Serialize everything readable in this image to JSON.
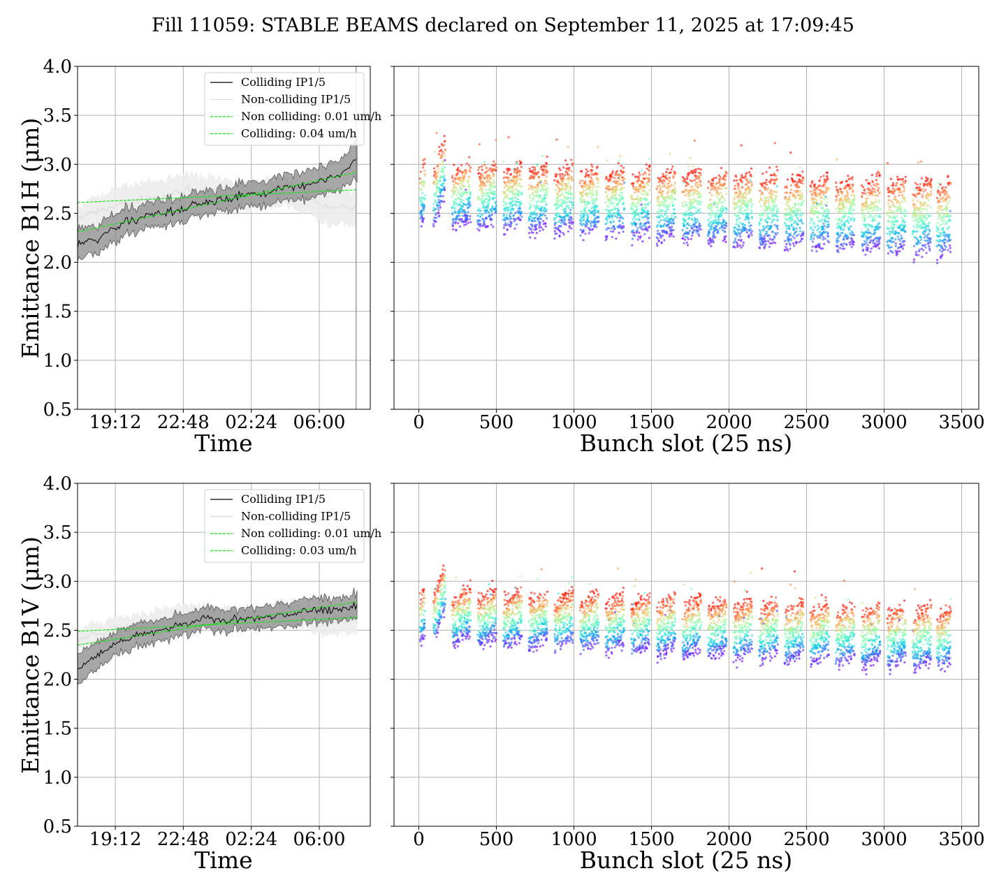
{
  "title": "Fill 11059: STABLE BEAMS declared on September 11, 2025 at 17:09:45",
  "colors": {
    "colliding": "#000000",
    "colliding_band": "#8a8a8a",
    "non_colliding": "#d8d8d8",
    "non_colliding_band": "#ececec",
    "fit": "#00ee00",
    "grid": "#b0b0b0"
  },
  "chart_data": [
    {
      "id": "b1h-time",
      "type": "line",
      "xlabel": "Time",
      "ylabel": "Emittance B1H (μm)",
      "xlim": [
        0,
        15.5
      ],
      "ylim": [
        0.5,
        4.0
      ],
      "x_ticks": [
        {
          "value": 2.0,
          "label": "19:12"
        },
        {
          "value": 5.6,
          "label": "22:48"
        },
        {
          "value": 9.2,
          "label": "02:24"
        },
        {
          "value": 12.8,
          "label": "06:00"
        }
      ],
      "y_ticks": [
        {
          "value": 0.5,
          "label": "0.5"
        },
        {
          "value": 1.0,
          "label": "1.0"
        },
        {
          "value": 1.5,
          "label": "1.5"
        },
        {
          "value": 2.0,
          "label": "2.0"
        },
        {
          "value": 2.5,
          "label": "2.5"
        },
        {
          "value": 3.0,
          "label": "3.0"
        },
        {
          "value": 3.5,
          "label": "3.5"
        },
        {
          "value": 4.0,
          "label": "4.0"
        }
      ],
      "grid": true,
      "legend_position": "top-right",
      "series": [
        {
          "name": "Colliding IP1/5",
          "style": "solid",
          "color": "#000000",
          "x": [
            0,
            1,
            2,
            3,
            4,
            5,
            6,
            7,
            8,
            9,
            10,
            11,
            12,
            13,
            14,
            14.8
          ],
          "y": [
            2.18,
            2.22,
            2.36,
            2.44,
            2.48,
            2.52,
            2.58,
            2.62,
            2.66,
            2.7,
            2.7,
            2.78,
            2.78,
            2.84,
            2.9,
            3.05
          ],
          "band": [
            0.15,
            0.15,
            0.14,
            0.13,
            0.13,
            0.13,
            0.13,
            0.12,
            0.12,
            0.12,
            0.12,
            0.13,
            0.14,
            0.15,
            0.15,
            0.2
          ]
        },
        {
          "name": "Non-colliding IP1/5",
          "style": "solid",
          "color": "#d8d8d8",
          "x": [
            0,
            1,
            2,
            3,
            4,
            5,
            6,
            7,
            8,
            9,
            10,
            11,
            12,
            13,
            14,
            14.8
          ],
          "y": [
            2.45,
            2.52,
            2.58,
            2.62,
            2.66,
            2.7,
            2.74,
            2.72,
            2.7,
            2.68,
            2.7,
            2.72,
            2.66,
            2.58,
            2.56,
            2.55
          ],
          "band": [
            0.12,
            0.15,
            0.18,
            0.18,
            0.18,
            0.16,
            0.16,
            0.15,
            0.14,
            0.14,
            0.14,
            0.15,
            0.15,
            0.18,
            0.18,
            0.18
          ]
        },
        {
          "name": "Non colliding: 0.01 um/h",
          "style": "dashed",
          "color": "#00ee00",
          "x": [
            0,
            14.8
          ],
          "y": [
            2.61,
            2.74
          ]
        },
        {
          "name": "Colliding: 0.04 um/h",
          "style": "dashed",
          "color": "#00ee00",
          "x": [
            0,
            14.8
          ],
          "y": [
            2.31,
            2.92
          ]
        }
      ]
    },
    {
      "id": "b1h-bunch",
      "type": "scatter",
      "xlabel": "Bunch slot (25 ns)",
      "ylabel": "",
      "xlim": [
        -160,
        3610
      ],
      "ylim": [
        0.5,
        4.0
      ],
      "x_ticks": [
        {
          "value": 0,
          "label": "0"
        },
        {
          "value": 500,
          "label": "500"
        },
        {
          "value": 1000,
          "label": "1000"
        },
        {
          "value": 1500,
          "label": "1500"
        },
        {
          "value": 2000,
          "label": "2000"
        },
        {
          "value": 2500,
          "label": "2500"
        },
        {
          "value": 3000,
          "label": "3000"
        },
        {
          "value": 3500,
          "label": "3500"
        }
      ],
      "y_ticks": [
        {
          "value": 0.5
        },
        {
          "value": 1.0
        },
        {
          "value": 1.5
        },
        {
          "value": 2.0
        },
        {
          "value": 2.5
        },
        {
          "value": 3.0
        },
        {
          "value": 3.5
        },
        {
          "value": 4.0
        }
      ],
      "grid": true,
      "color_scale": "rainbow",
      "trains": [
        [
          8,
          40
        ],
        [
          95,
          170
        ],
        [
          215,
          335
        ],
        [
          380,
          500
        ],
        [
          545,
          665
        ],
        [
          710,
          830
        ],
        [
          875,
          995
        ],
        [
          1040,
          1160
        ],
        [
          1205,
          1325
        ],
        [
          1370,
          1490
        ],
        [
          1535,
          1655
        ],
        [
          1700,
          1820
        ],
        [
          1865,
          1985
        ],
        [
          2030,
          2150
        ],
        [
          2195,
          2315
        ],
        [
          2360,
          2480
        ],
        [
          2525,
          2645
        ],
        [
          2690,
          2810
        ],
        [
          2855,
          2975
        ],
        [
          3020,
          3140
        ],
        [
          3185,
          3305
        ],
        [
          3340,
          3430
        ]
      ],
      "level_range_start": [
        2.35,
        2.95
      ],
      "level_range_end": [
        2.0,
        2.75
      ]
    },
    {
      "id": "b1v-time",
      "type": "line",
      "xlabel": "Time",
      "ylabel": "Emittance B1V (μm)",
      "xlim": [
        0,
        15.5
      ],
      "ylim": [
        0.5,
        4.0
      ],
      "x_ticks": [
        {
          "value": 2.0,
          "label": "19:12"
        },
        {
          "value": 5.6,
          "label": "22:48"
        },
        {
          "value": 9.2,
          "label": "02:24"
        },
        {
          "value": 12.8,
          "label": "06:00"
        }
      ],
      "y_ticks": [
        {
          "value": 0.5,
          "label": "0.5"
        },
        {
          "value": 1.0,
          "label": "1.0"
        },
        {
          "value": 1.5,
          "label": "1.5"
        },
        {
          "value": 2.0,
          "label": "2.0"
        },
        {
          "value": 2.5,
          "label": "2.5"
        },
        {
          "value": 3.0,
          "label": "3.0"
        },
        {
          "value": 3.5,
          "label": "3.5"
        },
        {
          "value": 4.0,
          "label": "4.0"
        }
      ],
      "grid": true,
      "legend_position": "top-right",
      "series": [
        {
          "name": "Colliding IP1/5",
          "style": "solid",
          "color": "#000000",
          "x": [
            0,
            1,
            2,
            3,
            4,
            5,
            6,
            7,
            8,
            9,
            10,
            11,
            12,
            13,
            14,
            14.8
          ],
          "y": [
            2.1,
            2.24,
            2.36,
            2.44,
            2.48,
            2.54,
            2.58,
            2.62,
            2.6,
            2.62,
            2.64,
            2.66,
            2.7,
            2.7,
            2.72,
            2.74
          ],
          "band": [
            0.14,
            0.13,
            0.12,
            0.12,
            0.11,
            0.11,
            0.11,
            0.11,
            0.11,
            0.11,
            0.11,
            0.11,
            0.12,
            0.12,
            0.12,
            0.13
          ]
        },
        {
          "name": "Non-colliding IP1/5",
          "style": "solid",
          "color": "#d8d8d8",
          "x": [
            0,
            1,
            2,
            3,
            4,
            5,
            6,
            7,
            8,
            9,
            10,
            11,
            12,
            13,
            14,
            14.8
          ],
          "y": [
            2.4,
            2.46,
            2.5,
            2.54,
            2.58,
            2.62,
            2.64,
            2.62,
            2.62,
            2.62,
            2.64,
            2.66,
            2.64,
            2.58,
            2.6,
            2.6
          ],
          "band": [
            0.1,
            0.12,
            0.12,
            0.12,
            0.12,
            0.12,
            0.12,
            0.12,
            0.11,
            0.11,
            0.12,
            0.12,
            0.12,
            0.14,
            0.14,
            0.14
          ]
        },
        {
          "name": "Non colliding: 0.01 um/h",
          "style": "dashed",
          "color": "#00ee00",
          "x": [
            0,
            14.8
          ],
          "y": [
            2.49,
            2.63
          ]
        },
        {
          "name": "Colliding: 0.03 um/h",
          "style": "dashed",
          "color": "#00ee00",
          "x": [
            0,
            14.8
          ],
          "y": [
            2.35,
            2.79
          ]
        }
      ]
    },
    {
      "id": "b1v-bunch",
      "type": "scatter",
      "xlabel": "Bunch slot (25 ns)",
      "ylabel": "",
      "xlim": [
        -160,
        3610
      ],
      "ylim": [
        0.5,
        4.0
      ],
      "x_ticks": [
        {
          "value": 0,
          "label": "0"
        },
        {
          "value": 500,
          "label": "500"
        },
        {
          "value": 1000,
          "label": "1000"
        },
        {
          "value": 1500,
          "label": "1500"
        },
        {
          "value": 2000,
          "label": "2000"
        },
        {
          "value": 2500,
          "label": "2500"
        },
        {
          "value": 3000,
          "label": "3000"
        },
        {
          "value": 3500,
          "label": "3500"
        }
      ],
      "y_ticks": [
        {
          "value": 0.5
        },
        {
          "value": 1.0
        },
        {
          "value": 1.5
        },
        {
          "value": 2.0
        },
        {
          "value": 2.5
        },
        {
          "value": 3.0
        },
        {
          "value": 3.5
        },
        {
          "value": 4.0
        }
      ],
      "grid": true,
      "color_scale": "rainbow",
      "trains": [
        [
          8,
          40
        ],
        [
          95,
          170
        ],
        [
          215,
          335
        ],
        [
          380,
          500
        ],
        [
          545,
          665
        ],
        [
          710,
          830
        ],
        [
          875,
          995
        ],
        [
          1040,
          1160
        ],
        [
          1205,
          1325
        ],
        [
          1370,
          1490
        ],
        [
          1535,
          1655
        ],
        [
          1700,
          1820
        ],
        [
          1865,
          1985
        ],
        [
          2030,
          2150
        ],
        [
          2195,
          2315
        ],
        [
          2360,
          2480
        ],
        [
          2525,
          2645
        ],
        [
          2690,
          2810
        ],
        [
          2855,
          2975
        ],
        [
          3020,
          3140
        ],
        [
          3185,
          3305
        ],
        [
          3340,
          3430
        ]
      ],
      "level_range_start": [
        2.35,
        2.85
      ],
      "level_range_end": [
        2.05,
        2.65
      ]
    }
  ]
}
